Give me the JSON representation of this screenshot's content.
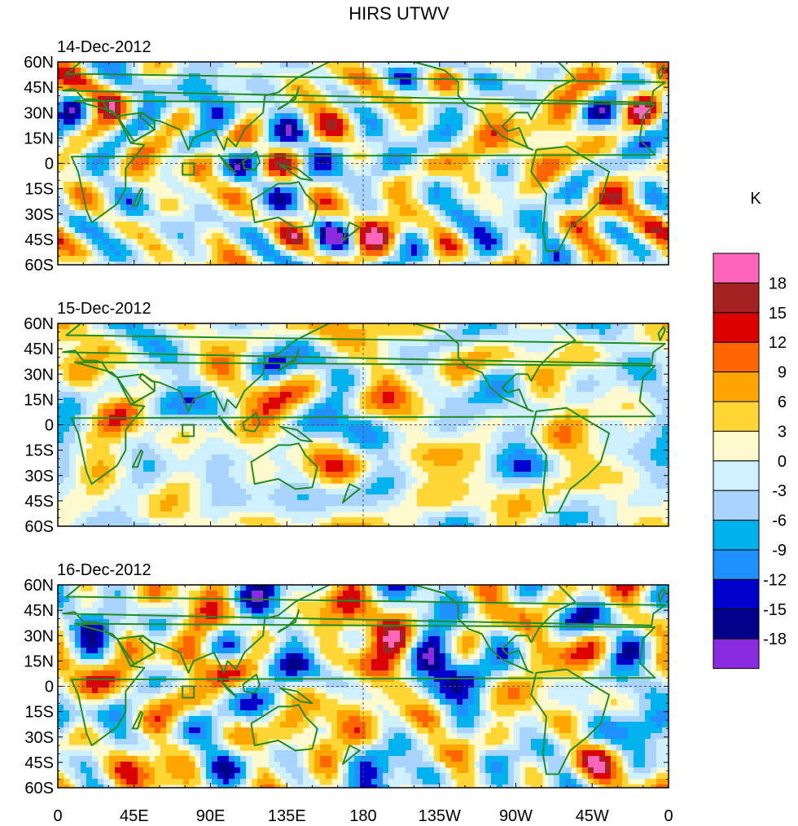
{
  "title": "HIRS UTWV",
  "panels": [
    {
      "date": "14-Dec-2012"
    },
    {
      "date": "15-Dec-2012"
    },
    {
      "date": "16-Dec-2012"
    }
  ],
  "lat_labels": [
    "60N",
    "45N",
    "30N",
    "15N",
    "0",
    "15S",
    "30S",
    "45S",
    "60S"
  ],
  "lon_labels": [
    "0",
    "45E",
    "90E",
    "135E",
    "180",
    "135W",
    "90W",
    "45W",
    "0"
  ],
  "colorbar": {
    "unit": "K",
    "levels": [
      "18",
      "15",
      "12",
      "9",
      "6",
      "3",
      "0",
      "-3",
      "-6",
      "-9",
      "-12",
      "-15",
      "-18"
    ],
    "colors": [
      "#ff66bb",
      "#a52222",
      "#dd0000",
      "#ff6600",
      "#ffa500",
      "#ffd633",
      "#fffacd",
      "#cff0ff",
      "#a8d4ff",
      "#00b2ee",
      "#1e90ff",
      "#0000cd",
      "#00008b",
      "#8a2be2"
    ]
  },
  "map_colors": {
    "background": "#fffacd",
    "coast": "#228b22"
  }
}
